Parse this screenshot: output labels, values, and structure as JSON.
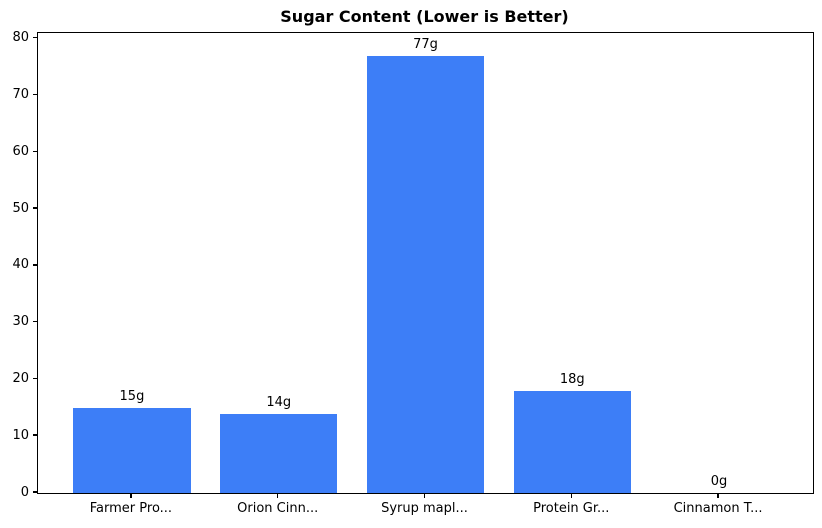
{
  "chart_data": {
    "type": "bar",
    "title": "Sugar Content (Lower is Better)",
    "categories": [
      "Farmer Pro...",
      "Orion Cinn...",
      "Syrup mapl...",
      "Protein Gr...",
      "Cinnamon T..."
    ],
    "values": [
      15,
      14,
      77,
      18,
      0
    ],
    "bar_labels": [
      "15g",
      "14g",
      "77g",
      "18g",
      "0g"
    ],
    "xlabel": "",
    "ylabel": "",
    "ylim": [
      0,
      81
    ],
    "yticks": [
      0,
      10,
      20,
      30,
      40,
      50,
      60,
      70,
      80
    ],
    "bar_color": "#3d7ef7",
    "text_color": "#000000",
    "spine_color": "#000000",
    "grid": false,
    "legend": false
  }
}
